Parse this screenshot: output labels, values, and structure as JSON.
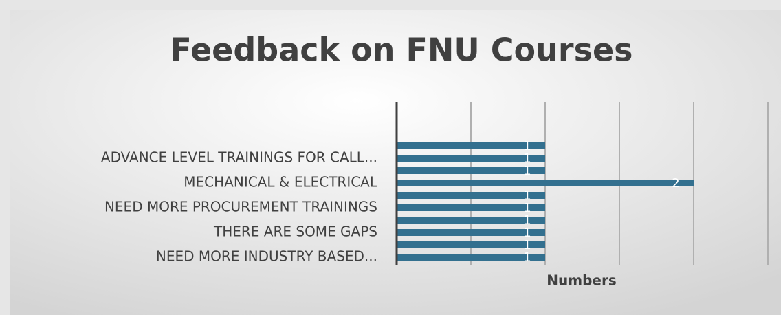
{
  "chart_data": {
    "type": "bar",
    "orientation": "horizontal",
    "title": "Feedback on FNU Courses",
    "categories": [
      null,
      "ADVANCE LEVEL TRAININGS FOR CALL...",
      null,
      "MECHANICAL & ELECTRICAL",
      null,
      "NEED MORE PROCUREMENT TRAININGS",
      null,
      "THERE ARE SOME GAPS",
      null,
      "NEED MORE INDUSTRY BASED..."
    ],
    "values": [
      1,
      1,
      1,
      2,
      1,
      1,
      1,
      1,
      1,
      1
    ],
    "color": "#33708f",
    "x_label": "Numbers",
    "xlim": [
      0,
      2.5
    ],
    "xticks": [
      0,
      0.5,
      1,
      1.5,
      2,
      2.5
    ],
    "grid": true
  }
}
